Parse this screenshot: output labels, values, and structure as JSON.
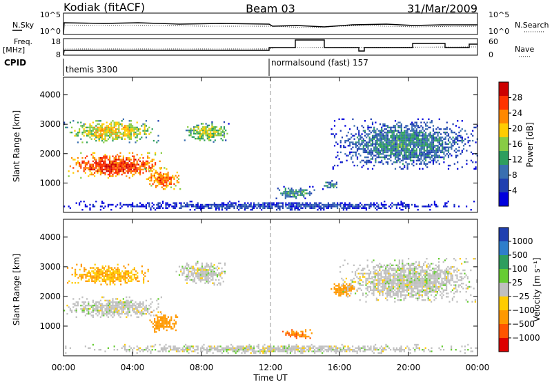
{
  "header": {
    "title": "Kodiak (fitACF)",
    "beam": "Beam 03",
    "date": "31/Mar/2009"
  },
  "panels": {
    "nsky_label": "N.Sky",
    "nsearch_label": "N.Search",
    "freq_label_1": "Freq.",
    "freq_label_2": "[MHz]",
    "nave_label": "Nave",
    "cpid_label": "CPID",
    "nsky_ticks": [
      "10^5",
      "10^0"
    ],
    "nsearch_ticks": [
      "10^5",
      "10^0"
    ],
    "freq_ticks": [
      "18",
      "8"
    ],
    "nave_ticks": [
      "60",
      "0"
    ],
    "cpid_segments": [
      "themis 3300",
      "normalsound (fast) 157"
    ]
  },
  "power_colorbar": {
    "label": "Power [dB]",
    "ticks": [
      "28",
      "24",
      "20",
      "16",
      "12",
      "8",
      "4"
    ],
    "colors": [
      "#cc0000",
      "#ff3300",
      "#ff8800",
      "#ffcc00",
      "#88cc44",
      "#2e9e5e",
      "#3a6fb0",
      "#1f3fb0",
      "#0000dd"
    ]
  },
  "velocity_colorbar": {
    "label": "Velocity [m s⁻¹]",
    "ticks": [
      "1000",
      "500",
      "100",
      "25",
      "−25",
      "−100",
      "−500",
      "−1000"
    ],
    "colors": [
      "#1f3fb0",
      "#2e7ecb",
      "#2e9e5e",
      "#66cc33",
      "#c0c0c0",
      "#ffcc00",
      "#ff9900",
      "#ff5500",
      "#dd0000"
    ]
  },
  "chart_data": [
    {
      "type": "heatmap",
      "title": "Power",
      "xlabel": "Time UT",
      "ylabel": "Slant Range [km]",
      "xlim_hours": [
        0,
        24
      ],
      "ylim_km": [
        0,
        4600
      ],
      "xticks": [
        "00:00",
        "04:00",
        "08:00",
        "12:00",
        "16:00",
        "20:00",
        "00:00"
      ],
      "yticks": [
        "1000",
        "2000",
        "3000",
        "4000"
      ],
      "colorbar_range_db": [
        0,
        30
      ],
      "regions": [
        {
          "t0": 0.0,
          "t1": 5.9,
          "r0": 1200,
          "r1": 2050,
          "value": 26
        },
        {
          "t0": 4.7,
          "t1": 6.8,
          "r0": 800,
          "r1": 1500,
          "value": 24
        },
        {
          "t0": 0.0,
          "t1": 5.5,
          "r0": 2400,
          "r1": 3200,
          "value": 18
        },
        {
          "t0": 6.9,
          "t1": 9.6,
          "r0": 2400,
          "r1": 3100,
          "value": 16
        },
        {
          "t0": 12.3,
          "t1": 14.5,
          "r0": 500,
          "r1": 900,
          "value": 12
        },
        {
          "t0": 15.0,
          "t1": 16.0,
          "r0": 800,
          "r1": 1100,
          "value": 12
        },
        {
          "t0": 15.5,
          "t1": 24.0,
          "r0": 1500,
          "r1": 3200,
          "value": 10
        },
        {
          "t0": 0.0,
          "t1": 24.0,
          "r0": 100,
          "r1": 400,
          "value": 6
        }
      ]
    },
    {
      "type": "heatmap",
      "title": "Velocity",
      "xlabel": "Time UT",
      "ylabel": "Slant Range [km]",
      "xlim_hours": [
        0,
        24
      ],
      "ylim_km": [
        0,
        4600
      ],
      "xticks": [
        "00:00",
        "04:00",
        "08:00",
        "12:00",
        "16:00",
        "20:00",
        "00:00"
      ],
      "yticks": [
        "1000",
        "2000",
        "3000",
        "4000"
      ],
      "colorbar_range_ms": [
        -1000,
        1000
      ],
      "regions": [
        {
          "t0": 0.0,
          "t1": 5.8,
          "r0": 1300,
          "r1": 2000,
          "value": 0
        },
        {
          "t0": 4.8,
          "t1": 6.6,
          "r0": 800,
          "r1": 1500,
          "value": -200
        },
        {
          "t0": 0.2,
          "t1": 5.0,
          "r0": 2400,
          "r1": 3100,
          "value": -60
        },
        {
          "t0": 6.5,
          "t1": 9.5,
          "r0": 2400,
          "r1": 3200,
          "value": 0
        },
        {
          "t0": 12.5,
          "t1": 14.4,
          "r0": 600,
          "r1": 900,
          "value": -300
        },
        {
          "t0": 15.4,
          "t1": 17.0,
          "r0": 2000,
          "r1": 2500,
          "value": -200
        },
        {
          "t0": 16.0,
          "t1": 24.0,
          "r0": 1800,
          "r1": 3300,
          "value": 0
        },
        {
          "t0": 0.0,
          "t1": 24.0,
          "r0": 100,
          "r1": 400,
          "value": 0
        }
      ]
    }
  ]
}
